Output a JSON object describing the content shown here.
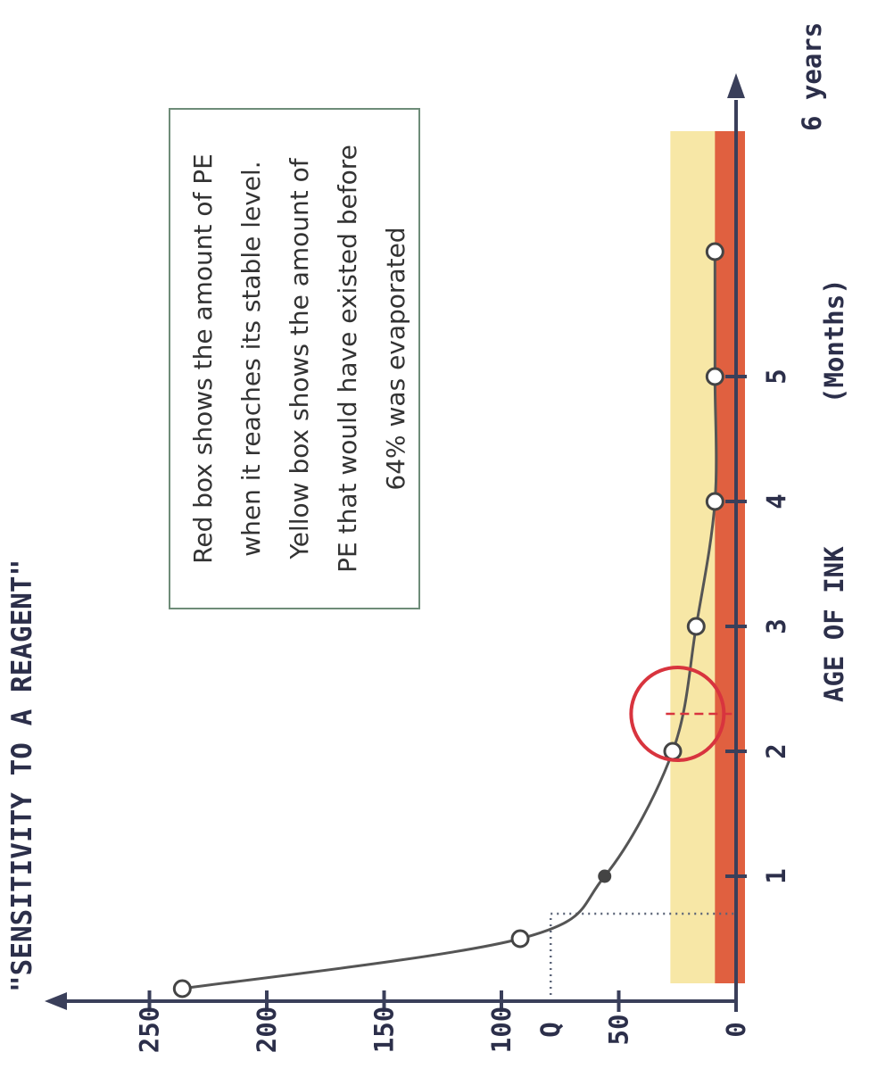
{
  "chart_data": {
    "type": "line",
    "title": "\"SENSITIVITY TO A REAGENT\"",
    "xlabel": "AGE OF INK",
    "xlabel_unit": "(Months)",
    "x_end_label": "6 years",
    "xlim": [
      0,
      6.5
    ],
    "ylim": [
      0,
      265
    ],
    "x_ticks": [
      {
        "value": 1,
        "label": "1"
      },
      {
        "value": 2,
        "label": "2"
      },
      {
        "value": 3,
        "label": "3"
      },
      {
        "value": 4,
        "label": "4"
      },
      {
        "value": 5,
        "label": "5"
      }
    ],
    "y_ticks": [
      {
        "value": 0,
        "label": "0"
      },
      {
        "value": 50,
        "label": "50"
      },
      {
        "value": 100,
        "label": "100"
      },
      {
        "value": 150,
        "label": "150"
      },
      {
        "value": 200,
        "label": "200"
      },
      {
        "value": 250,
        "label": "250"
      }
    ],
    "y_marker": {
      "value": 79,
      "label": "Q"
    },
    "q_x": 0.7,
    "points": [
      {
        "x": 0.1,
        "y": 236
      },
      {
        "x": 0.5,
        "y": 92
      },
      {
        "x": 1.0,
        "y": 56
      },
      {
        "x": 2.0,
        "y": 27
      },
      {
        "x": 3.0,
        "y": 17
      },
      {
        "x": 4.0,
        "y": 9
      },
      {
        "x": 5.0,
        "y": 9
      },
      {
        "x": 6.0,
        "y": 9
      }
    ],
    "red_box": {
      "y_from": 0,
      "y_to": 9,
      "color": "#e06040"
    },
    "yellow_box": {
      "y_from": 0,
      "y_to": 28,
      "color": "#f7e7a6"
    },
    "stable_point_x": 2.3,
    "circle_color": "#d8343e",
    "annotation": "Red box shows the amount of PE when it reaches its stable level. Yellow box shows the amount of PE that would have existed before 64% was evaporated",
    "annotation_lines": [
      "Red box shows the amount of PE",
      "when it reaches its stable level.",
      "Yellow box shows the amount of",
      "PE that would have existed before",
      "64% was evaporated"
    ]
  }
}
